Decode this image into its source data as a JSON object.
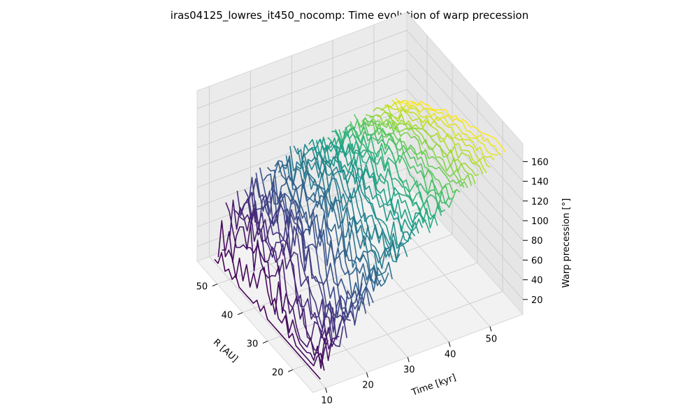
{
  "chart_data": {
    "type": "line",
    "title": "iras04125_lowres_it450_nocomp: Time evolution of warp precession",
    "xlabel": "R [AU]",
    "ylabel": "Time [kyr]",
    "zlabel": "Warp precession [°]",
    "x_ticks": [
      "20",
      "30",
      "40",
      "50"
    ],
    "y_ticks": [
      "10",
      "20",
      "30",
      "40",
      "50"
    ],
    "z_ticks": [
      "20",
      "40",
      "60",
      "80",
      "100",
      "120",
      "140",
      "160"
    ],
    "xlim": [
      12,
      58
    ],
    "ylim": [
      7,
      58
    ],
    "zlim": [
      5,
      178
    ],
    "colormap": "viridis",
    "grid": true,
    "n_curves": 50,
    "time_range": [
      10,
      55
    ],
    "radius_range": [
      14,
      56
    ],
    "profile_shape": "precession rises from ~20° near R≈14 AU at early times toward ~160–170° over time; at late times the curve plateaus near 170° at small R and decreases to ~100° at R≈56 AU"
  }
}
